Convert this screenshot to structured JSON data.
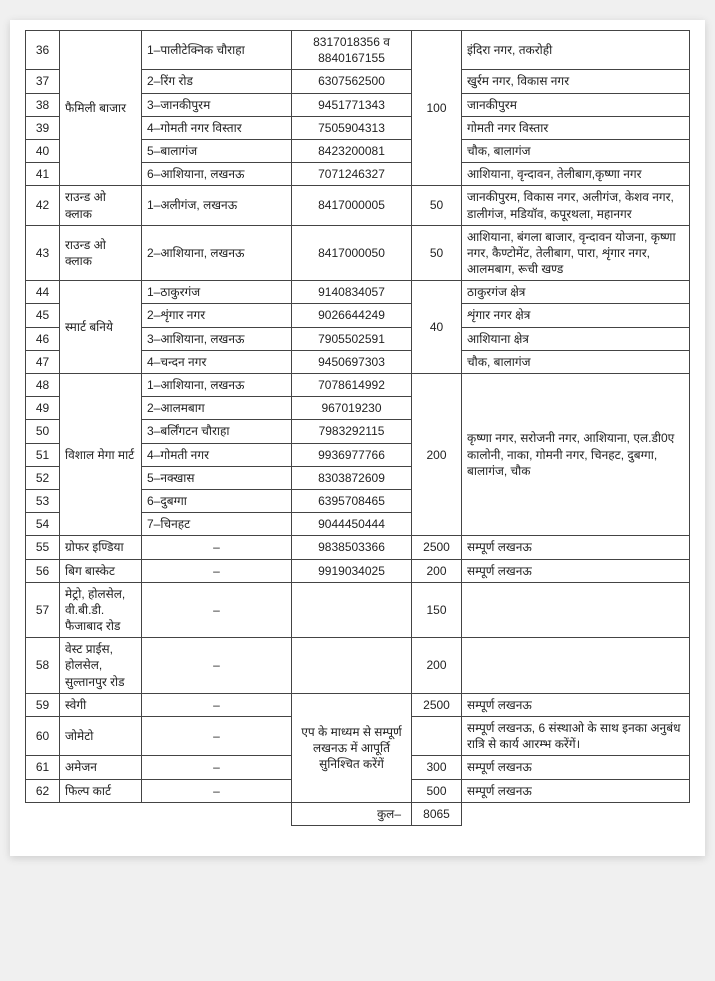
{
  "rows": [
    {
      "sn": "36",
      "store": "",
      "loc": "1–पालीटेक्निक चौराहा",
      "phone": "8317018356 व 8840167155",
      "qty": "",
      "area": "इंदिरा नगर, तकरोही"
    },
    {
      "sn": "37",
      "store": "",
      "loc": "2–रिंग रोड",
      "phone": "6307562500",
      "qty": "",
      "area": "खुर्रम नगर, विकास नगर"
    },
    {
      "sn": "38",
      "store": "फैमिली बाजार",
      "loc": "3–जानकीपुरम",
      "phone": "9451771343",
      "qty": "100",
      "area": "जानकीपुरम"
    },
    {
      "sn": "39",
      "store": "",
      "loc": "4–गोमती नगर विस्तार",
      "phone": "7505904313",
      "qty": "",
      "area": "गोमती नगर विस्तार"
    },
    {
      "sn": "40",
      "store": "",
      "loc": "5–बालागंज",
      "phone": "8423200081",
      "qty": "",
      "area": "चौक, बालागंज"
    },
    {
      "sn": "41",
      "store": "",
      "loc": "6–आशियाना, लखनऊ",
      "phone": "7071246327",
      "qty": "",
      "area": "आशियाना, वृन्दावन, तेलीबाग,कृष्णा नगर"
    },
    {
      "sn": "42",
      "store": "राउन्ड ओ क्लाक",
      "loc": "1–अलीगंज, लखनऊ",
      "phone": "8417000005",
      "qty": "50",
      "area": "जानकीपुरम, विकास नगर, अलीगंज, केशव नगर, डालीगंज, मडियॉव, कपूरथला, महानगर"
    },
    {
      "sn": "43",
      "store": "राउन्ड ओ क्लाक",
      "loc": "2–आशियाना, लखनऊ",
      "phone": "8417000050",
      "qty": "50",
      "area": "आशियाना, बंगला बाजार, वृन्दावन योजना, कृष्णा नगर, कैण्टोमेंट, तेलीबाग, पारा, शृंगार नगर, आलमबाग, रूची खण्ड"
    },
    {
      "sn": "44",
      "store": "",
      "loc": "1–ठाकुरगंज",
      "phone": "9140834057",
      "qty": "",
      "area": "ठाकुरगंज क्षेत्र"
    },
    {
      "sn": "45",
      "store": "स्मार्ट बनिये",
      "loc": "2–शृंगार नगर",
      "phone": "9026644249",
      "qty": "40",
      "area": "शृंगार नगर क्षेत्र"
    },
    {
      "sn": "46",
      "store": "",
      "loc": "3–आशियाना, लखनऊ",
      "phone": "7905502591",
      "qty": "",
      "area": "आशियाना क्षेत्र"
    },
    {
      "sn": "47",
      "store": "",
      "loc": "4–चन्दन नगर",
      "phone": "9450697303",
      "qty": "",
      "area": "चौक, बालागंज"
    },
    {
      "sn": "48",
      "store": "",
      "loc": "1–आशियाना, लखनऊ",
      "phone": "7078614992",
      "qty": "",
      "area": ""
    },
    {
      "sn": "49",
      "store": "",
      "loc": "2–आलमबाग",
      "phone": "967019230",
      "qty": "",
      "area": ""
    },
    {
      "sn": "50",
      "store": "विशाल मेगा मार्ट",
      "loc": "3–बर्लिंगटन चौराहा",
      "phone": "7983292115",
      "qty": "200",
      "area": "कृष्णा नगर, सरोजनी नगर, आशियाना, एल.डी0ए कालोनी, नाका, गोमनी नगर, चिनहट, दुबग्गा, बालागंज, चौक"
    },
    {
      "sn": "51",
      "store": "",
      "loc": "4–गोमती नगर",
      "phone": "9936977766",
      "qty": "",
      "area": ""
    },
    {
      "sn": "52",
      "store": "",
      "loc": "5–नक्खास",
      "phone": "8303872609",
      "qty": "",
      "area": ""
    },
    {
      "sn": "53",
      "store": "",
      "loc": "6–दुबग्गा",
      "phone": "6395708465",
      "qty": "",
      "area": ""
    },
    {
      "sn": "54",
      "store": "",
      "loc": "7–चिनहट",
      "phone": "9044450444",
      "qty": "",
      "area": ""
    },
    {
      "sn": "55",
      "store": "ग्रोफर इण्डिया",
      "loc": "–",
      "phone": "9838503366",
      "qty": "2500",
      "area": "सम्पूर्ण लखनऊ"
    },
    {
      "sn": "56",
      "store": "बिग बास्केट",
      "loc": "–",
      "phone": "9919034025",
      "qty": "200",
      "area": "सम्पूर्ण लखनऊ"
    },
    {
      "sn": "57",
      "store": "मेट्रो, होलसेल, वी.बी.डी. फैजाबाद रोड",
      "loc": "–",
      "phone": "",
      "qty": "150",
      "area": ""
    },
    {
      "sn": "58",
      "store": "वेस्ट प्राईस, होलसेल, सुल्तानपुर रोड",
      "loc": "–",
      "phone": "",
      "qty": "200",
      "area": ""
    },
    {
      "sn": "59",
      "store": "स्वेगी",
      "loc": "–",
      "phone": "",
      "qty": "2500",
      "area": "सम्पूर्ण लखनऊ"
    },
    {
      "sn": "60",
      "store": "जोमेटो",
      "loc": "–",
      "phone": "एप के माध्यम से सम्पूर्ण लखनऊ में आपूर्ति सुनिश्चित करेंगें",
      "qty": "",
      "area": "सम्पूर्ण लखनऊ, 6 संस्थाओ के साथ इनका अनुबंध रात्रि से कार्य आरम्भ करेंगें।"
    },
    {
      "sn": "61",
      "store": "अमेजन",
      "loc": "–",
      "phone": "",
      "qty": "300",
      "area": "सम्पूर्ण लखनऊ"
    },
    {
      "sn": "62",
      "store": "फिल्प कार्ट",
      "loc": "–",
      "phone": "",
      "qty": "500",
      "area": "सम्पूर्ण लखनऊ"
    }
  ],
  "total_label": "कुल–",
  "total_value": "8065"
}
